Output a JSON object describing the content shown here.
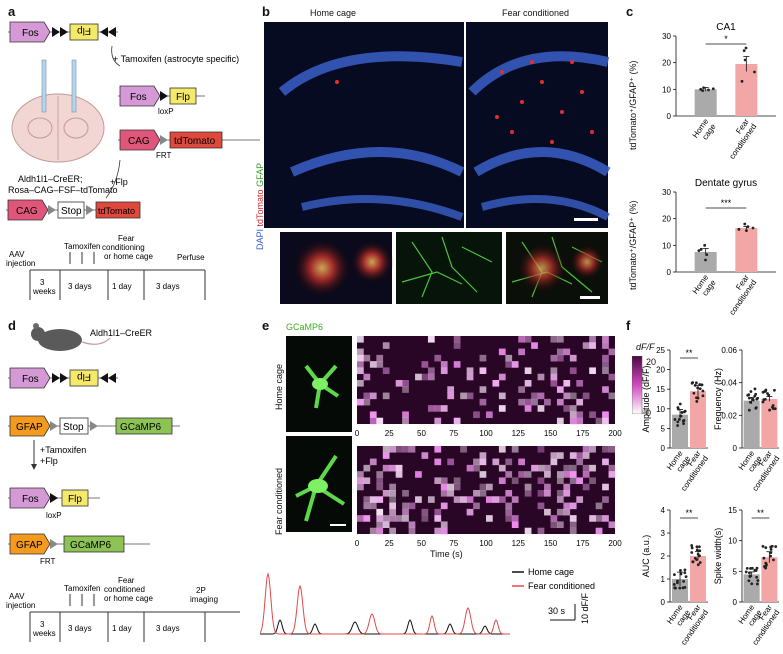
{
  "panels": {
    "a": "a",
    "b": "b",
    "c": "c",
    "d": "d",
    "e": "e",
    "f": "f"
  },
  "colors": {
    "fos": "#d59ad6",
    "flp": "#f5e96a",
    "cag": "#e0557a",
    "tdtomato": "#e0483b",
    "gfap": "#f39a1f",
    "gcamp": "#8dc255",
    "gray": "#aaaaaa",
    "pink": "#f3a6a6",
    "red": "#e04a4a",
    "scatter": "#222222"
  },
  "a": {
    "tamoxifen": "+ Tamoxifen (astrocyte specific)",
    "fos": "Fos",
    "flp": "Flp",
    "cag": "CAG",
    "tdtomato": "tdTomato",
    "stop": "Stop",
    "loxp": "loxP",
    "frt": "FRT",
    "plusflp": "+Flp",
    "mouse_line1": "Aldh1l1–CreER;",
    "mouse_line2": "Rosa–CAG–FSF–tdTomato",
    "timeline": {
      "aav": "AAV\ninjection",
      "tam": "Tamoxifen",
      "fear": "Fear\nconditioning\nor home cage",
      "perfuse": "Perfuse",
      "w3": "3\nweeks",
      "d3a": "3 days",
      "d1": "1 day",
      "d3b": "3 days"
    }
  },
  "b": {
    "home": "Home cage",
    "fear": "Fear conditioned",
    "stain_dapi": "DAPI",
    "stain_td": "tdTomato",
    "stain_gfap": "GFAP"
  },
  "c": {
    "ylabel": "tdTomato⁺/GFAP⁺ (%)",
    "chart_data": [
      {
        "type": "bar",
        "title": "CA1",
        "categories": [
          "Home cage",
          "Fear conditioned"
        ],
        "values": [
          10,
          19.5
        ],
        "errors": [
          0.7,
          2.8
        ],
        "points": [
          [
            9.5,
            10,
            10.2,
            10.6,
            9.8
          ],
          [
            13,
            16.5,
            21,
            24.5,
            25.5
          ]
        ],
        "ylim": [
          0,
          30
        ],
        "yticks": [
          0,
          10,
          20,
          30
        ],
        "sig": "*"
      },
      {
        "type": "bar",
        "title": "Dentate gyrus",
        "categories": [
          "Home cage",
          "Fear conditioned"
        ],
        "values": [
          7.5,
          16.5
        ],
        "errors": [
          1.3,
          0.6
        ],
        "points": [
          [
            4.5,
            6.5,
            8,
            8.5,
            10
          ],
          [
            15.5,
            16,
            16.5,
            17,
            18
          ]
        ],
        "ylim": [
          0,
          30
        ],
        "yticks": [
          0,
          10,
          20,
          30
        ],
        "sig": "***"
      }
    ]
  },
  "d": {
    "mouse": "Aldh1l1–CreER",
    "gfap": "GFAP",
    "stop": "Stop",
    "gcamp": "GCaMP6",
    "fos": "Fos",
    "flp": "Flp",
    "plus": "+Tamoxifen\n+Flp",
    "loxp": "loxP",
    "frt": "FRT",
    "timeline": {
      "aav": "AAV\ninjection",
      "tam": "Tamoxifen",
      "fear": "Fear\nconditioned\nor home cage",
      "img": "2P\nimaging",
      "w3": "3\nweeks",
      "d3a": "3 days",
      "d1": "1 day",
      "d3b": "3 days"
    }
  },
  "e": {
    "gcamp": "GCaMP6",
    "home": "Home cage",
    "fear": "Fear conditioned",
    "cbar_title": "dF/F",
    "cbar_max": "20",
    "cbar_min": "0",
    "xticks": [
      "0",
      "25",
      "50",
      "75",
      "100",
      "125",
      "150",
      "175",
      "200"
    ],
    "xlabel": "Time (s)",
    "legend_home": "Home cage",
    "legend_fear": "Fear conditioned",
    "scale_time": "30 s",
    "scale_y": "10 dF/F"
  },
  "f": {
    "chart_data": [
      {
        "type": "bar",
        "ylabel": "Amplitude (dF/F)",
        "categories": [
          "Home cage",
          "Fear conditioned"
        ],
        "values": [
          8.5,
          14.5
        ],
        "errors": [
          1.3,
          1.5
        ],
        "ylim": [
          0,
          25
        ],
        "yticks": [
          0,
          5,
          10,
          15,
          20,
          25
        ],
        "sig": "**"
      },
      {
        "type": "bar",
        "ylabel": "Frequency (Hz)",
        "categories": [
          "Home cage",
          "Fear conditioned"
        ],
        "values": [
          0.029,
          0.03
        ],
        "errors": [
          0.002,
          0.0015
        ],
        "ylim": [
          0,
          0.06
        ],
        "yticks": [
          "0",
          "0.02",
          "0.04",
          "0.06"
        ],
        "sig": ""
      },
      {
        "type": "bar",
        "ylabel": "AUC (a.u.)",
        "categories": [
          "Home cage",
          "Fear conditioned"
        ],
        "values": [
          1.0,
          2.0
        ],
        "errors": [
          0.3,
          0.2
        ],
        "ylim": [
          0,
          4
        ],
        "yticks": [
          0,
          1,
          2,
          3,
          4
        ],
        "sig": "**"
      },
      {
        "type": "bar",
        "ylabel": "Spike width(s)",
        "categories": [
          "Home cage",
          "Fear conditioned"
        ],
        "values": [
          4.5,
          7.3
        ],
        "errors": [
          0.4,
          0.9
        ],
        "ylim": [
          0,
          15
        ],
        "yticks": [
          0,
          5,
          10,
          15
        ],
        "sig": "**"
      }
    ]
  }
}
